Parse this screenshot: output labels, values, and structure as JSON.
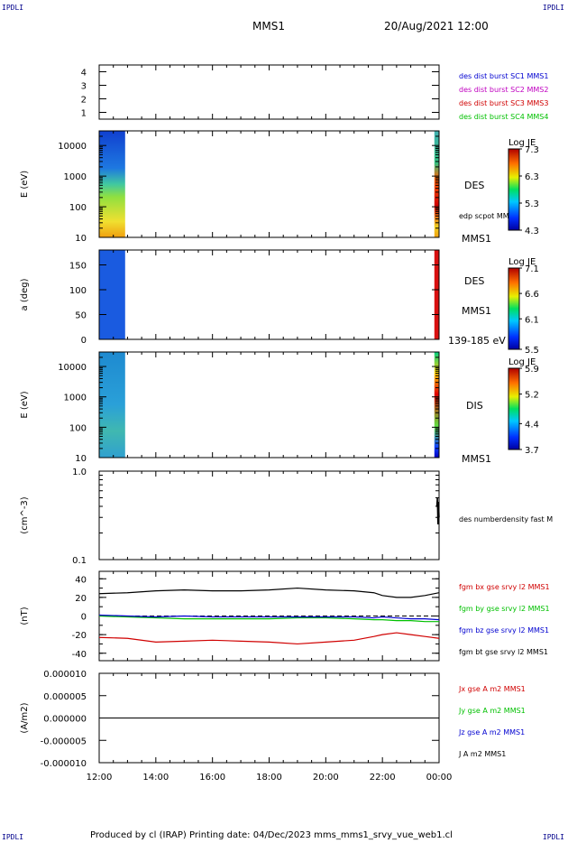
{
  "corners": {
    "tl": "IPDLI",
    "tr": "IPDLI",
    "bl": "IPDLI",
    "br": "IPDLI"
  },
  "header": {
    "spacecraft": "MMS1",
    "datetime": "20/Aug/2021 12:00"
  },
  "footer": {
    "text": "Produced by cl (IRAP)   Printing date: 04/Dec/2023   mms_mms1_srvy_vue_web1.cl"
  },
  "colors": {
    "blue": "#0000d0",
    "magenta": "#c000c0",
    "red": "#d00000",
    "green": "#00c000",
    "black": "#000000"
  },
  "chart_data": [
    {
      "type": "line",
      "name": "burst-availability",
      "ylim": [
        0.5,
        4.5
      ],
      "yticks": [
        "1",
        "2",
        "3",
        "4"
      ],
      "series": [],
      "labels": [
        {
          "text": "des dist burst SC1 MMS1",
          "color": "#0000d0"
        },
        {
          "text": "des dist burst SC2 MMS2",
          "color": "#c000c0"
        },
        {
          "text": "des dist burst SC3 MMS3",
          "color": "#d00000"
        },
        {
          "text": "des dist burst SC4 MMS4",
          "color": "#00c000"
        }
      ]
    },
    {
      "type": "heatmap",
      "name": "des-energy-spectrogram",
      "ylabel": "E (eV)",
      "yscale": "log",
      "ylim": [
        10,
        30000
      ],
      "yticks": [
        "10",
        "100",
        "1000",
        "10000"
      ],
      "data_time_ranges": [
        [
          "12:00",
          "12:55"
        ],
        [
          "23:50",
          "24:00"
        ]
      ],
      "label": "DES",
      "label2": "edp scpot MMS1",
      "label3": "MMS1",
      "colorbar": {
        "title": "Log JE",
        "ticks": [
          "7.3",
          "6.3",
          "5.3",
          "4.3"
        ],
        "range": [
          4.3,
          7.3
        ]
      }
    },
    {
      "type": "heatmap",
      "name": "des-pitch-angle",
      "ylabel": "a (deg)",
      "ylim": [
        0,
        180
      ],
      "yticks": [
        "0",
        "50",
        "100",
        "150"
      ],
      "data_time_ranges": [
        [
          "12:00",
          "12:55"
        ],
        [
          "23:50",
          "24:00"
        ]
      ],
      "label": "DES",
      "label2": "MMS1",
      "label3": "139-185 eV",
      "colorbar": {
        "title": "Log JE",
        "ticks": [
          "7.1",
          "6.6",
          "6.1",
          "5.5"
        ],
        "range": [
          5.5,
          7.1
        ]
      }
    },
    {
      "type": "heatmap",
      "name": "dis-energy-spectrogram",
      "ylabel": "E (eV)",
      "yscale": "log",
      "ylim": [
        10,
        30000
      ],
      "yticks": [
        "10",
        "100",
        "1000",
        "10000"
      ],
      "data_time_ranges": [
        [
          "12:00",
          "12:55"
        ],
        [
          "23:50",
          "24:00"
        ]
      ],
      "label": "DIS",
      "label3": "MMS1",
      "colorbar": {
        "title": "Log JE",
        "ticks": [
          "5.9",
          "5.2",
          "4.4",
          "3.7"
        ],
        "range": [
          3.7,
          5.9
        ]
      }
    },
    {
      "type": "line",
      "name": "density",
      "ylabel": "(cm^-3)",
      "yscale": "log",
      "ylim": [
        0.1,
        1.0
      ],
      "yticks": [
        "0.1",
        "1.0"
      ],
      "series": [
        {
          "name": "des numberdensity fast M",
          "color": "#000000",
          "x": [
            23.92,
            23.94,
            23.96,
            23.98,
            24.0
          ],
          "values": [
            0.4,
            0.5,
            0.25,
            0.45,
            0.3
          ]
        }
      ]
    },
    {
      "type": "line",
      "name": "magnetic-field",
      "ylabel": "(nT)",
      "ylim": [
        -48,
        48
      ],
      "yticks": [
        "-40",
        "-20",
        "0",
        "20",
        "40"
      ],
      "x": [
        12,
        13,
        14,
        15,
        16,
        17,
        18,
        19,
        20,
        21,
        21.7,
        22,
        22.5,
        23,
        23.5,
        24
      ],
      "series": [
        {
          "name": "fgm bx gse srvy l2 MMS1",
          "color": "#d00000",
          "values": [
            -23,
            -24,
            -28,
            -27,
            -26,
            -27,
            -28,
            -30,
            -28,
            -26,
            -22,
            -20,
            -18,
            -20,
            -22,
            -24
          ]
        },
        {
          "name": "fgm by gse srvy l2 MMS1",
          "color": "#00c000",
          "values": [
            0,
            -1,
            -2,
            -3,
            -3,
            -3,
            -3,
            -2,
            -2,
            -3,
            -4,
            -4,
            -5,
            -5,
            -6,
            -6
          ]
        },
        {
          "name": "fgm bz gse srvy l2 MMS1",
          "color": "#0000d0",
          "values": [
            1,
            0,
            -1,
            0,
            -1,
            -1,
            -1,
            -1,
            -1,
            -1,
            -2,
            -1,
            -2,
            -3,
            -3,
            -4
          ]
        },
        {
          "name": "fgm bt gse srvy l2 MMS1",
          "color": "#000000",
          "values": [
            24,
            25,
            27,
            28,
            27,
            27,
            28,
            30,
            28,
            27,
            25,
            22,
            20,
            20,
            22,
            25
          ]
        }
      ]
    },
    {
      "type": "line",
      "name": "current-density",
      "ylabel": "(A/m2)",
      "ylim": [
        -1e-05,
        1e-05
      ],
      "yticks": [
        "-0.000010",
        "-0.000005",
        "0.000000",
        "0.000005",
        "0.000010"
      ],
      "series": [
        {
          "name": "Jx gse A m2 MMS1",
          "color": "#d00000"
        },
        {
          "name": "Jy gse A m2 MMS1",
          "color": "#00c000"
        },
        {
          "name": "Jz gse A m2 MMS1",
          "color": "#0000d0"
        },
        {
          "name": "J A m2 MMS1",
          "color": "#000000"
        }
      ]
    }
  ],
  "xaxis": {
    "ticks": [
      "12:00",
      "14:00",
      "16:00",
      "18:00",
      "20:00",
      "22:00",
      "00:00"
    ],
    "xlim": [
      12,
      24
    ]
  }
}
